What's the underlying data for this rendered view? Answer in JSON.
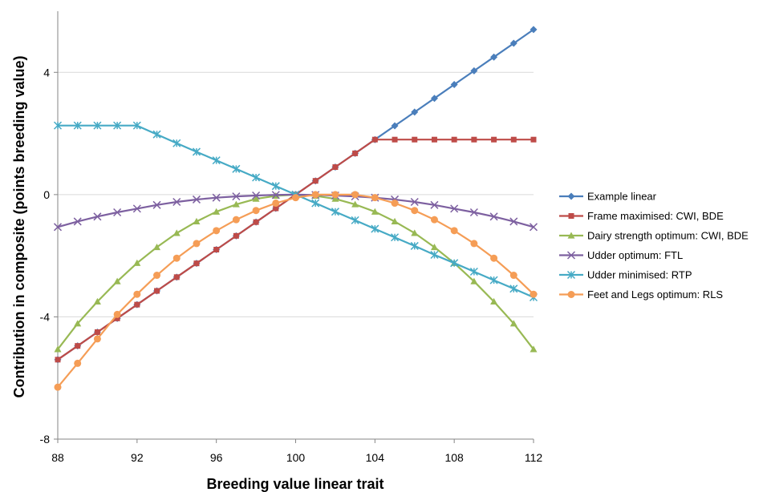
{
  "chart_data": {
    "type": "line",
    "title": "",
    "xlabel": "Breeding value linear trait",
    "ylabel": "Contribution in composite (points breeding value)",
    "xlim": [
      88,
      112
    ],
    "ylim": [
      -8,
      6
    ],
    "xticks": [
      88,
      92,
      96,
      100,
      104,
      108,
      112
    ],
    "yticks": [
      -8,
      -4,
      0,
      4
    ],
    "grid": "horizontal",
    "legend_position": "right",
    "x": [
      88,
      89,
      90,
      91,
      92,
      93,
      94,
      95,
      96,
      97,
      98,
      99,
      100,
      101,
      102,
      103,
      104,
      105,
      106,
      107,
      108,
      109,
      110,
      111,
      112
    ],
    "series": [
      {
        "name": "Example linear",
        "color": "#4a7ebb",
        "marker": "diamond",
        "values": [
          -5.4,
          -4.95,
          -4.5,
          -4.05,
          -3.6,
          -3.15,
          -2.7,
          -2.25,
          -1.8,
          -1.35,
          -0.9,
          -0.45,
          0,
          0.45,
          0.9,
          1.35,
          1.8,
          2.25,
          2.7,
          3.15,
          3.6,
          4.05,
          4.5,
          4.95,
          5.4
        ]
      },
      {
        "name": "Frame maximised: CWI, BDE",
        "color": "#be4b48",
        "marker": "square",
        "values": [
          -5.4,
          -4.95,
          -4.5,
          -4.05,
          -3.6,
          -3.15,
          -2.7,
          -2.25,
          -1.8,
          -1.35,
          -0.9,
          -0.45,
          0,
          0.45,
          0.9,
          1.35,
          1.8,
          1.8,
          1.8,
          1.8,
          1.8,
          1.8,
          1.8,
          1.8,
          1.8
        ]
      },
      {
        "name": "Dairy strength optimum: CWI, BDE",
        "color": "#98b954",
        "marker": "triangle",
        "values": [
          -5.06,
          -4.22,
          -3.5,
          -2.84,
          -2.24,
          -1.72,
          -1.26,
          -0.88,
          -0.56,
          -0.32,
          -0.14,
          -0.04,
          0,
          -0.04,
          -0.14,
          -0.32,
          -0.56,
          -0.88,
          -1.26,
          -1.72,
          -2.24,
          -2.84,
          -3.5,
          -4.22,
          -5.06
        ]
      },
      {
        "name": "Udder optimum: FTL",
        "color": "#7d60a0",
        "marker": "x",
        "values": [
          -1.06,
          -0.88,
          -0.72,
          -0.58,
          -0.46,
          -0.34,
          -0.24,
          -0.16,
          -0.1,
          -0.06,
          -0.03,
          -0.01,
          0,
          -0.01,
          -0.03,
          -0.06,
          -0.1,
          -0.16,
          -0.24,
          -0.34,
          -0.46,
          -0.58,
          -0.72,
          -0.88,
          -1.06
        ]
      },
      {
        "name": "Udder minimised: RTP",
        "color": "#46aac5",
        "marker": "star",
        "values": [
          2.26,
          2.26,
          2.26,
          2.26,
          2.26,
          1.97,
          1.68,
          1.4,
          1.12,
          0.84,
          0.56,
          0.28,
          0,
          -0.28,
          -0.56,
          -0.84,
          -1.12,
          -1.4,
          -1.68,
          -1.97,
          -2.24,
          -2.52,
          -2.8,
          -3.08,
          -3.36
        ]
      },
      {
        "name": "Feet and Legs optimum: RLS",
        "color": "#f59d56",
        "marker": "circle",
        "values": [
          -6.3,
          -5.52,
          -4.72,
          -3.92,
          -3.26,
          -2.64,
          -2.08,
          -1.6,
          -1.18,
          -0.82,
          -0.52,
          -0.28,
          -0.1,
          0,
          0,
          0,
          -0.1,
          -0.28,
          -0.52,
          -0.82,
          -1.18,
          -1.6,
          -2.08,
          -2.64,
          -3.26
        ]
      }
    ]
  }
}
